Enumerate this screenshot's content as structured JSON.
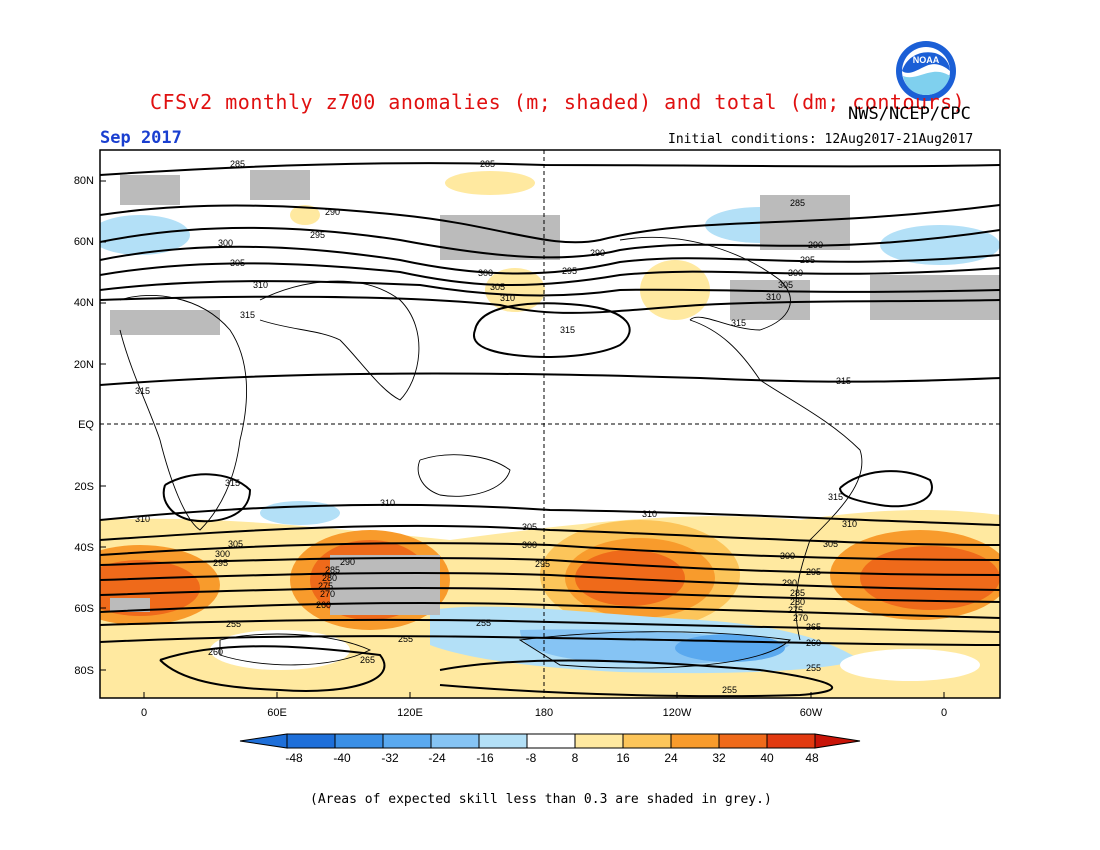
{
  "header": {
    "title": "CFSv2 monthly z700 anomalies (m; shaded) and total (dm; contours)",
    "agency": "NWS/NCEP/CPC",
    "period": "Sep 2017",
    "initial_conditions": "Initial conditions: 12Aug2017-21Aug2017",
    "logo_text": "NOAA"
  },
  "map": {
    "lat_labels": [
      "80N",
      "60N",
      "40N",
      "20N",
      "EQ",
      "20S",
      "40S",
      "60S",
      "80S"
    ],
    "lon_labels": [
      "0",
      "60E",
      "120E",
      "180",
      "120W",
      "60W",
      "0"
    ],
    "contour_labels": [
      "255",
      "260",
      "265",
      "270",
      "275",
      "280",
      "285",
      "290",
      "295",
      "300",
      "305",
      "310",
      "315"
    ]
  },
  "colorbar": {
    "ticks": [
      "-48",
      "-40",
      "-32",
      "-24",
      "-16",
      "-8",
      "8",
      "16",
      "24",
      "32",
      "40",
      "48"
    ],
    "colors": [
      "#1e6fd9",
      "#3a8fe6",
      "#5aa9ef",
      "#86c4f4",
      "#b3e0f7",
      "#ffffff",
      "#ffe9a0",
      "#fcc55a",
      "#f89b2c",
      "#ef6a1a",
      "#e23a10",
      "#c81408"
    ]
  },
  "footnote": "(Areas of expected skill less than 0.3 are shaded in grey.)"
}
